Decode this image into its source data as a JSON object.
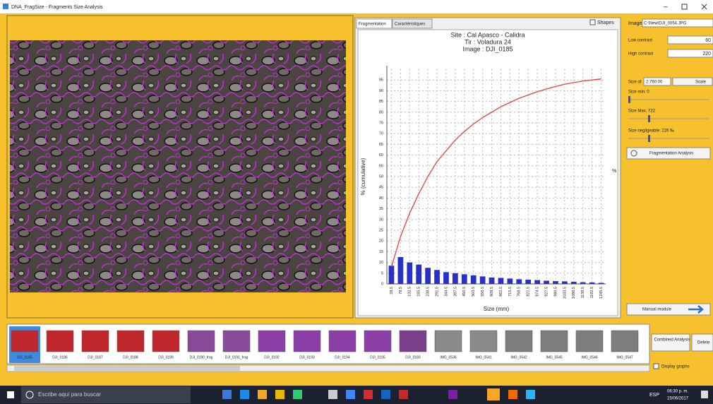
{
  "window": {
    "title": "DNA_FragSize - Fragments Size Analysis"
  },
  "tabs": [
    "Fragmentation",
    "Caractéristiques"
  ],
  "shapes_label": "Shapes",
  "chart_data": {
    "type": "bar",
    "title_lines": [
      "Site : Cal Apasco - Calidra",
      "Tir : Voladura 24",
      "Image : DJI_0185"
    ],
    "x_label": "Size (mm)",
    "y_label": "% (cumulative)",
    "y2_label": "%",
    "categories": [
      "28.5",
      "78.5",
      "132.5",
      "185.5",
      "238.5",
      "291.5",
      "344.5",
      "397.5",
      "450.5",
      "503.5",
      "556.5",
      "609.5",
      "662.5",
      "715.5",
      "768.5",
      "821.5",
      "874.5",
      "927.5",
      "980.5",
      "1033.5",
      "1086.5",
      "1139.5",
      "1192.5",
      "1245.5"
    ],
    "series": [
      {
        "type": "bar",
        "color": "#2830c8",
        "values": [
          8.5,
          12.5,
          10,
          9,
          7.5,
          6.5,
          5.5,
          5,
          4.5,
          4,
          3.5,
          3,
          2.8,
          2.5,
          2.2,
          2,
          1.8,
          1.5,
          1.3,
          1.2,
          1,
          0.8,
          0.7,
          0.5
        ]
      },
      {
        "type": "line",
        "color": "#e8403a",
        "values": [
          8,
          22,
          33,
          42,
          50,
          57,
          62,
          67,
          71,
          74.5,
          77.5,
          80,
          82.5,
          84.5,
          86.5,
          88,
          89.5,
          90.8,
          92,
          93,
          93.8,
          94.5,
          95,
          95.5
        ]
      }
    ],
    "ylim": [
      0,
      100
    ],
    "yticks": [
      0,
      5,
      10,
      15,
      20,
      25,
      30,
      35,
      40,
      45,
      50,
      55,
      60,
      65,
      70,
      75,
      80,
      85,
      90,
      95
    ],
    "grid": true
  },
  "controls": {
    "image_label": "Image",
    "image_path": "C:\\New\\DJI_0054.JPG",
    "low_contrast_label": "Low contrast",
    "low_contrast_value": "60",
    "high_contrast_label": "High contrast",
    "high_contrast_value": "220",
    "size_label": "Size of",
    "size_value": "2.760.00",
    "scale_button": "Scale",
    "size_min": "Size min: 0",
    "size_max": "Size Max: 722",
    "size_negligeable": "Size negligeable: 226 ‰",
    "fragmentation_button": "Fragmentation Analysis",
    "manual_button": "Manual module"
  },
  "thumbnails": [
    "DJI_0185",
    "DJI_0186",
    "DJI_0187",
    "DJI_0188",
    "DJI_0189",
    "DJI_0190_frag",
    "DJI_0191_frag",
    "DJI_0192",
    "DJI_0193",
    "DJI_0194",
    "DJI_0195",
    "DJI_0183",
    "IMG_0536",
    "IMG_0541",
    "IMG_0542",
    "IMG_0545",
    "IMG_0546",
    "IMG_0547"
  ],
  "bottom": {
    "combined_button": "Combined Analysis",
    "delete_button": "Delete",
    "display_graphs": "Display graphs"
  },
  "taskbar": {
    "search": "Escribe aquí para buscar",
    "language": "ESP",
    "time": "06:30 p. m.",
    "date": "15/06/2017"
  }
}
